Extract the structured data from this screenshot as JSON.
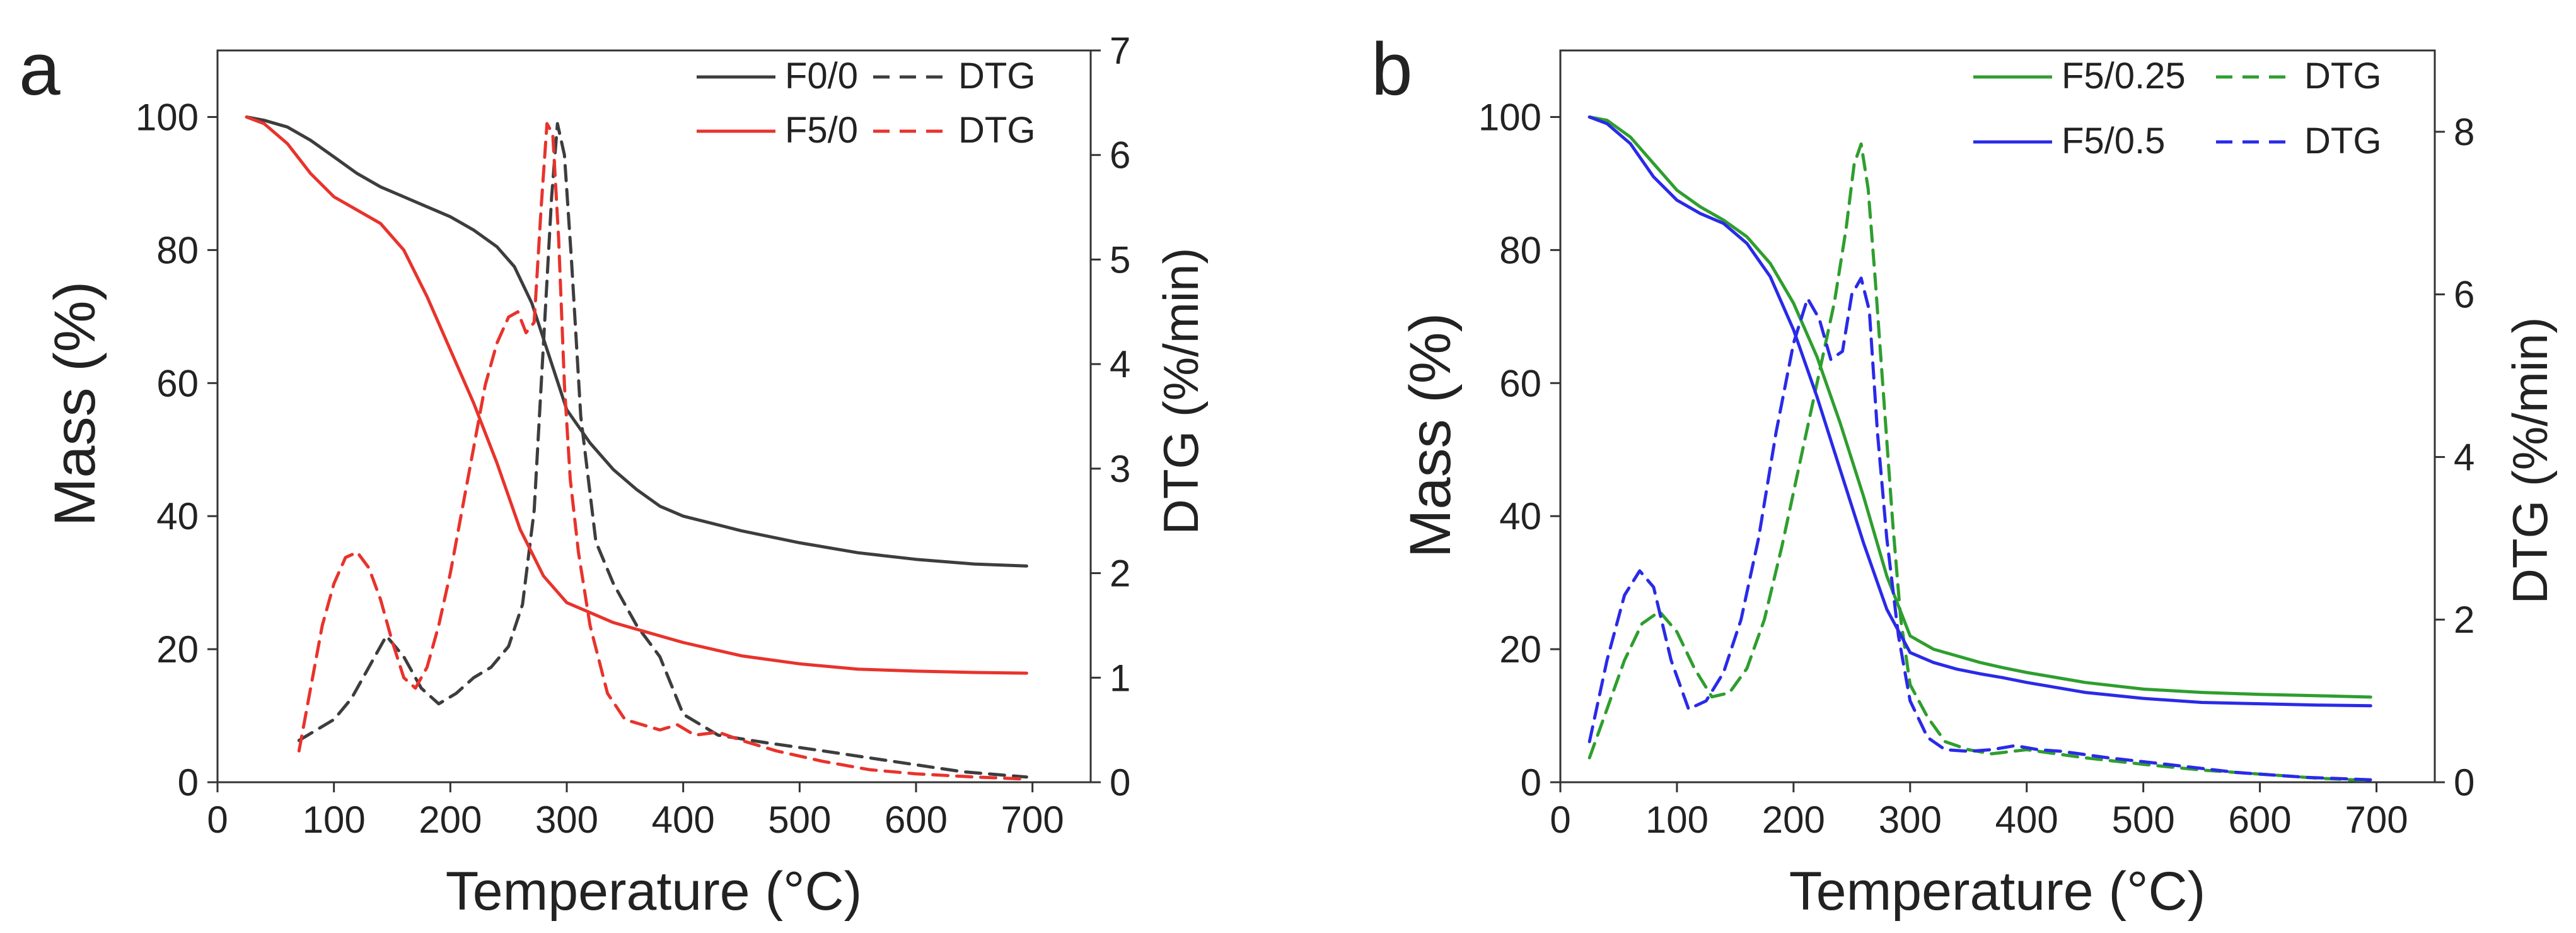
{
  "chart_data": [
    {
      "panel_label": "a",
      "type": "line",
      "xlabel": "Temperature (°C)",
      "ylabel": "Mass (%)",
      "y2label": "DTG (%/min)",
      "xlim": [
        0,
        750
      ],
      "ylim": [
        0,
        110
      ],
      "y2lim": [
        0,
        7
      ],
      "xticks": [
        0,
        100,
        200,
        300,
        400,
        500,
        600,
        700
      ],
      "yticks": [
        0,
        20,
        40,
        60,
        80,
        100
      ],
      "y2ticks": [
        0,
        1,
        2,
        3,
        4,
        5,
        6,
        7
      ],
      "legend": [
        {
          "label": "F0/0",
          "dtg_label": "DTG",
          "color": "#3d3d3d"
        },
        {
          "label": "F5/0",
          "dtg_label": "DTG",
          "color": "#e8332c"
        }
      ],
      "series": [
        {
          "name": "F0/0",
          "axis": "left",
          "color": "#3d3d3d",
          "dashed": false,
          "x": [
            25,
            40,
            60,
            80,
            100,
            120,
            140,
            160,
            180,
            200,
            220,
            240,
            255,
            270,
            285,
            300,
            320,
            340,
            360,
            380,
            400,
            450,
            500,
            550,
            600,
            650,
            695
          ],
          "y": [
            100,
            99.5,
            98.5,
            96.5,
            94,
            91.5,
            89.5,
            88,
            86.5,
            85,
            83,
            80.5,
            77.5,
            72,
            64,
            56,
            51,
            47,
            44,
            41.5,
            40,
            37.8,
            36,
            34.5,
            33.5,
            32.8,
            32.5
          ]
        },
        {
          "name": "DTG (F0/0)",
          "axis": "right",
          "color": "#3d3d3d",
          "dashed": true,
          "x": [
            70,
            85,
            100,
            115,
            130,
            145,
            160,
            175,
            190,
            205,
            220,
            235,
            250,
            262,
            272,
            280,
            287,
            292,
            298,
            304,
            312,
            325,
            340,
            360,
            380,
            400,
            430,
            470,
            520,
            580,
            640,
            695
          ],
          "y": [
            0.4,
            0.5,
            0.6,
            0.8,
            1.1,
            1.4,
            1.2,
            0.9,
            0.75,
            0.85,
            1.0,
            1.1,
            1.3,
            1.7,
            2.6,
            4.2,
            5.6,
            6.3,
            6.0,
            5.0,
            3.5,
            2.3,
            1.9,
            1.5,
            1.2,
            0.65,
            0.45,
            0.38,
            0.3,
            0.2,
            0.1,
            0.05
          ]
        },
        {
          "name": "F5/0",
          "axis": "left",
          "color": "#e8332c",
          "dashed": false,
          "x": [
            25,
            40,
            60,
            80,
            100,
            120,
            140,
            160,
            180,
            200,
            220,
            240,
            260,
            280,
            300,
            320,
            340,
            360,
            380,
            400,
            450,
            500,
            550,
            600,
            650,
            695
          ],
          "y": [
            100,
            99,
            96,
            91.5,
            88,
            86,
            84,
            80,
            73,
            65,
            57,
            48,
            38,
            31,
            27,
            25.5,
            24,
            23,
            22,
            21,
            19,
            17.8,
            17,
            16.7,
            16.5,
            16.4
          ]
        },
        {
          "name": "DTG (F5/0)",
          "axis": "right",
          "color": "#e8332c",
          "dashed": true,
          "x": [
            70,
            80,
            90,
            100,
            110,
            120,
            130,
            140,
            150,
            160,
            170,
            180,
            190,
            200,
            210,
            220,
            230,
            240,
            250,
            258,
            265,
            272,
            278,
            283,
            288,
            293,
            298,
            303,
            310,
            320,
            335,
            350,
            365,
            380,
            395,
            410,
            430,
            450,
            480,
            520,
            560,
            600,
            650,
            695
          ],
          "y": [
            0.3,
            0.9,
            1.5,
            1.9,
            2.15,
            2.2,
            2.05,
            1.75,
            1.35,
            1.0,
            0.9,
            1.1,
            1.5,
            2.0,
            2.6,
            3.2,
            3.8,
            4.2,
            4.45,
            4.5,
            4.3,
            4.4,
            5.5,
            6.3,
            6.2,
            5.2,
            3.8,
            2.9,
            2.2,
            1.5,
            0.85,
            0.6,
            0.55,
            0.5,
            0.55,
            0.45,
            0.48,
            0.4,
            0.3,
            0.2,
            0.12,
            0.08,
            0.05,
            0.03
          ]
        }
      ]
    },
    {
      "panel_label": "b",
      "type": "line",
      "xlabel": "Temperature (°C)",
      "ylabel": "Mass (%)",
      "y2label": "DTG (%/min)",
      "xlim": [
        0,
        750
      ],
      "ylim": [
        0,
        110
      ],
      "y2lim": [
        0,
        9
      ],
      "xticks": [
        0,
        100,
        200,
        300,
        400,
        500,
        600,
        700
      ],
      "yticks": [
        0,
        20,
        40,
        60,
        80,
        100
      ],
      "y2ticks": [
        0,
        2,
        4,
        6,
        8
      ],
      "legend": [
        {
          "label": "F5/0.25",
          "dtg_label": "DTG",
          "color": "#2e9e2e"
        },
        {
          "label": "F5/0.5",
          "dtg_label": "DTG",
          "color": "#2a2ae8"
        }
      ],
      "series": [
        {
          "name": "F5/0.25",
          "axis": "left",
          "color": "#2e9e2e",
          "dashed": false,
          "x": [
            25,
            40,
            60,
            80,
            100,
            120,
            140,
            160,
            180,
            200,
            220,
            240,
            260,
            280,
            300,
            320,
            340,
            360,
            380,
            400,
            450,
            500,
            550,
            600,
            650,
            695
          ],
          "y": [
            100,
            99.5,
            97,
            93,
            89,
            86.5,
            84.5,
            82,
            78,
            72,
            64,
            54,
            43,
            31,
            22,
            20,
            19,
            18,
            17.2,
            16.5,
            15,
            14,
            13.5,
            13.2,
            13,
            12.8
          ]
        },
        {
          "name": "DTG (F5/0.25)",
          "axis": "right",
          "color": "#2e9e2e",
          "dashed": true,
          "x": [
            25,
            40,
            55,
            70,
            85,
            100,
            115,
            130,
            145,
            160,
            175,
            190,
            205,
            220,
            235,
            245,
            252,
            258,
            264,
            270,
            278,
            285,
            292,
            300,
            315,
            330,
            350,
            370,
            400,
            450,
            500,
            550,
            600,
            650,
            695
          ],
          "y": [
            0.3,
            0.9,
            1.5,
            1.95,
            2.1,
            1.85,
            1.4,
            1.05,
            1.1,
            1.4,
            2.0,
            2.9,
            3.9,
            4.9,
            5.9,
            6.8,
            7.6,
            7.85,
            7.3,
            6.2,
            4.6,
            3.2,
            2.0,
            1.2,
            0.8,
            0.5,
            0.4,
            0.35,
            0.4,
            0.3,
            0.22,
            0.15,
            0.1,
            0.05,
            0.02
          ]
        },
        {
          "name": "F5/0.5",
          "axis": "left",
          "color": "#2a2ae8",
          "dashed": false,
          "x": [
            25,
            40,
            60,
            80,
            100,
            120,
            140,
            160,
            180,
            200,
            220,
            240,
            260,
            280,
            300,
            320,
            340,
            360,
            380,
            400,
            450,
            500,
            550,
            600,
            650,
            695
          ],
          "y": [
            100,
            99,
            96,
            91,
            87.5,
            85.5,
            84,
            81,
            76,
            68,
            58,
            47,
            36,
            26,
            19.5,
            18,
            17,
            16.3,
            15.7,
            15,
            13.5,
            12.6,
            12,
            11.8,
            11.6,
            11.5
          ]
        },
        {
          "name": "DTG (F5/0.5)",
          "axis": "right",
          "color": "#2a2ae8",
          "dashed": true,
          "x": [
            25,
            40,
            55,
            68,
            80,
            95,
            110,
            125,
            140,
            155,
            170,
            185,
            200,
            212,
            222,
            232,
            242,
            250,
            258,
            265,
            272,
            280,
            290,
            300,
            315,
            330,
            350,
            370,
            390,
            410,
            430,
            470,
            520,
            580,
            640,
            695
          ],
          "y": [
            0.5,
            1.5,
            2.3,
            2.6,
            2.4,
            1.5,
            0.9,
            1.0,
            1.35,
            2.0,
            3.0,
            4.3,
            5.4,
            5.95,
            5.7,
            5.2,
            5.3,
            6.0,
            6.2,
            5.8,
            4.3,
            3.0,
            1.8,
            1.0,
            0.55,
            0.4,
            0.38,
            0.4,
            0.45,
            0.4,
            0.38,
            0.3,
            0.22,
            0.12,
            0.06,
            0.03
          ]
        }
      ]
    }
  ]
}
